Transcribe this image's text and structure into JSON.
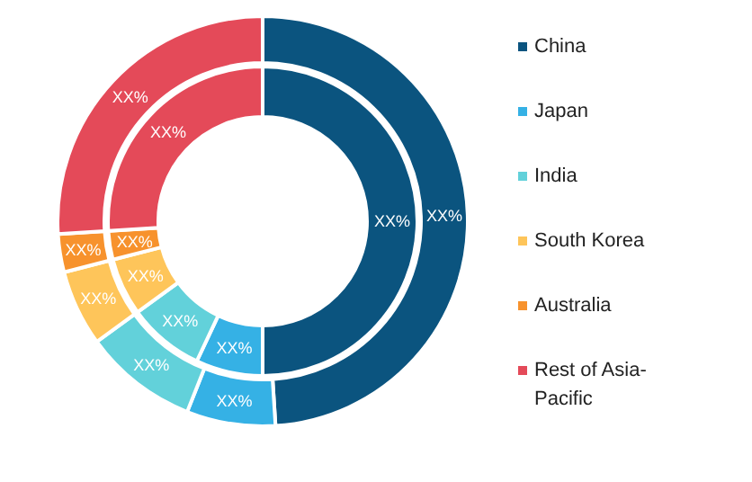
{
  "chart_data": {
    "type": "donut",
    "categories": [
      "China",
      "Japan",
      "India",
      "South Korea",
      "Australia",
      "Rest of Asia-Pacific"
    ],
    "colors": [
      "#0b547f",
      "#35b1e5",
      "#62d1da",
      "#fec55a",
      "#f7922d",
      "#e44a59"
    ],
    "series": [
      {
        "values": [
          49,
          7,
          9,
          6,
          3,
          26
        ],
        "value_labels": [
          "XX%",
          "XX%",
          "XX%",
          "XX%",
          "XX%",
          "XX%"
        ]
      },
      {
        "values": [
          50,
          7,
          8,
          6,
          3,
          26
        ],
        "value_labels": [
          "XX%",
          "XX%",
          "XX%",
          "XX%",
          "XX%",
          "XX%"
        ]
      }
    ],
    "legend": "right"
  }
}
